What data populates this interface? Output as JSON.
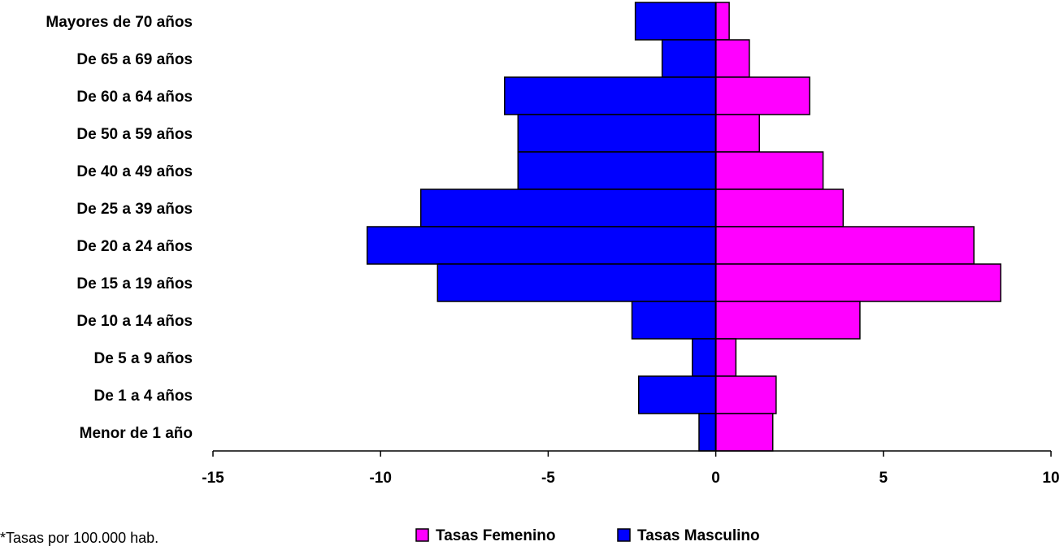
{
  "chart_data": {
    "type": "bar",
    "orientation": "horizontal",
    "categories": [
      "Mayores de 70 años",
      "De 65 a 69 años",
      "De 60 a 64 años",
      "De 50 a 59 años",
      "De 40 a 49 años",
      "De 25 a 39 años",
      "De 20 a 24 años",
      "De 15 a 19 años",
      "De 10 a 14 años",
      "De 5 a 9 años",
      "De 1 a 4 años",
      "Menor de 1 año"
    ],
    "series": [
      {
        "name": "Tasas Femenino",
        "color": "#ff00ff",
        "values": [
          0.4,
          1.0,
          2.8,
          1.3,
          3.2,
          3.8,
          7.7,
          8.5,
          4.3,
          0.6,
          1.8,
          1.7
        ]
      },
      {
        "name": "Tasas Masculino",
        "color": "#0000ff",
        "values": [
          -2.4,
          -1.6,
          -6.3,
          -5.9,
          -5.9,
          -8.8,
          -10.4,
          -8.3,
          -2.5,
          -0.7,
          -2.3,
          -0.5
        ]
      }
    ],
    "xlim": [
      -15,
      10
    ],
    "xticks": [
      "-15",
      "-10",
      "-5",
      "0",
      "5",
      "10"
    ],
    "xtick_values": [
      -15,
      -10,
      -5,
      0,
      5,
      10
    ],
    "title": "",
    "xlabel": "",
    "ylabel": "",
    "legend": "bottom-center",
    "grid": false
  },
  "footnote": "*Tasas por 100.000 hab."
}
